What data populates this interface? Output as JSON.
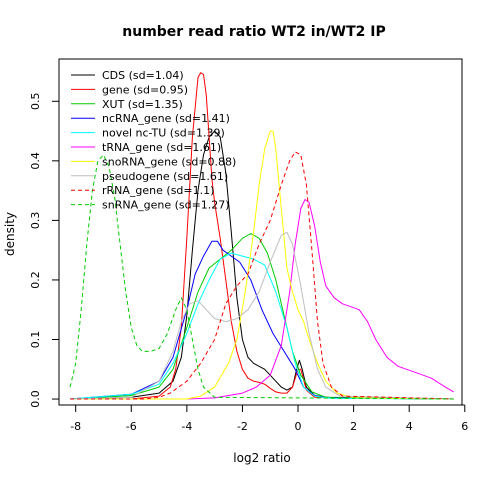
{
  "chart_data": {
    "type": "line",
    "title": "number read ratio WT2 in/WT2 IP",
    "xlabel": "log2 ratio",
    "ylabel": "density",
    "xlim": [
      -8.6,
      5.9
    ],
    "ylim": [
      -0.01,
      0.571
    ],
    "xticks": [
      -8,
      -6,
      -4,
      -2,
      0,
      2,
      4,
      6
    ],
    "yticks": [
      0.0,
      0.1,
      0.2,
      0.3,
      0.4,
      0.5
    ],
    "legend_position": "top-left",
    "grid": false,
    "series": [
      {
        "name": "CDS (sd=1.04)",
        "color": "#000000",
        "dash": false,
        "points": [
          [
            -8.2,
            0.0
          ],
          [
            -6.0,
            0.003
          ],
          [
            -5.0,
            0.01
          ],
          [
            -4.5,
            0.03
          ],
          [
            -4.2,
            0.07
          ],
          [
            -4.0,
            0.14
          ],
          [
            -3.8,
            0.25
          ],
          [
            -3.6,
            0.35
          ],
          [
            -3.4,
            0.41
          ],
          [
            -3.2,
            0.44
          ],
          [
            -3.0,
            0.45
          ],
          [
            -2.8,
            0.44
          ],
          [
            -2.6,
            0.38
          ],
          [
            -2.4,
            0.28
          ],
          [
            -2.2,
            0.17
          ],
          [
            -2.0,
            0.1
          ],
          [
            -1.8,
            0.07
          ],
          [
            -1.6,
            0.06
          ],
          [
            -1.4,
            0.055
          ],
          [
            -1.2,
            0.05
          ],
          [
            -1.0,
            0.04
          ],
          [
            -0.8,
            0.03
          ],
          [
            -0.6,
            0.02
          ],
          [
            -0.4,
            0.015
          ],
          [
            -0.2,
            0.02
          ],
          [
            -0.05,
            0.05
          ],
          [
            0.05,
            0.065
          ],
          [
            0.15,
            0.05
          ],
          [
            0.3,
            0.02
          ],
          [
            0.6,
            0.006
          ],
          [
            1.2,
            0.002
          ],
          [
            5.6,
            0.0
          ]
        ]
      },
      {
        "name": "gene (sd=0.95)",
        "color": "#ff0000",
        "dash": false,
        "points": [
          [
            -8.2,
            0.0
          ],
          [
            -6.0,
            0.0
          ],
          [
            -5.0,
            0.005
          ],
          [
            -4.6,
            0.02
          ],
          [
            -4.4,
            0.05
          ],
          [
            -4.2,
            0.12
          ],
          [
            -4.0,
            0.27
          ],
          [
            -3.8,
            0.44
          ],
          [
            -3.6,
            0.54
          ],
          [
            -3.5,
            0.548
          ],
          [
            -3.4,
            0.545
          ],
          [
            -3.3,
            0.51
          ],
          [
            -3.2,
            0.44
          ],
          [
            -3.1,
            0.37
          ],
          [
            -3.0,
            0.33
          ],
          [
            -2.9,
            0.3
          ],
          [
            -2.8,
            0.27
          ],
          [
            -2.6,
            0.2
          ],
          [
            -2.4,
            0.13
          ],
          [
            -2.2,
            0.08
          ],
          [
            -2.0,
            0.05
          ],
          [
            -1.8,
            0.035
          ],
          [
            -1.6,
            0.03
          ],
          [
            -1.4,
            0.028
          ],
          [
            -1.2,
            0.025
          ],
          [
            -1.0,
            0.018
          ],
          [
            -0.8,
            0.012
          ],
          [
            -0.6,
            0.01
          ],
          [
            -0.4,
            0.01
          ],
          [
            -0.2,
            0.02
          ],
          [
            0.0,
            0.05
          ],
          [
            0.1,
            0.05
          ],
          [
            0.3,
            0.015
          ],
          [
            0.6,
            0.003
          ],
          [
            5.6,
            0.0
          ]
        ]
      },
      {
        "name": "XUT (sd=1.35)",
        "color": "#00cc00",
        "dash": false,
        "points": [
          [
            -8.2,
            0.0
          ],
          [
            -6.0,
            0.006
          ],
          [
            -5.0,
            0.02
          ],
          [
            -4.5,
            0.05
          ],
          [
            -4.0,
            0.12
          ],
          [
            -3.6,
            0.18
          ],
          [
            -3.2,
            0.22
          ],
          [
            -2.8,
            0.235
          ],
          [
            -2.4,
            0.25
          ],
          [
            -2.0,
            0.27
          ],
          [
            -1.7,
            0.278
          ],
          [
            -1.4,
            0.27
          ],
          [
            -1.1,
            0.245
          ],
          [
            -0.8,
            0.2
          ],
          [
            -0.5,
            0.14
          ],
          [
            -0.2,
            0.08
          ],
          [
            0.1,
            0.04
          ],
          [
            0.5,
            0.012
          ],
          [
            1.0,
            0.003
          ],
          [
            5.6,
            0.0
          ]
        ]
      },
      {
        "name": "ncRNA_gene (sd=1.41)",
        "color": "#0000ff",
        "dash": false,
        "points": [
          [
            -8.2,
            0.0
          ],
          [
            -6.0,
            0.008
          ],
          [
            -5.0,
            0.03
          ],
          [
            -4.5,
            0.07
          ],
          [
            -4.0,
            0.15
          ],
          [
            -3.7,
            0.21
          ],
          [
            -3.4,
            0.24
          ],
          [
            -3.1,
            0.265
          ],
          [
            -2.9,
            0.265
          ],
          [
            -2.7,
            0.25
          ],
          [
            -2.4,
            0.24
          ],
          [
            -2.1,
            0.23
          ],
          [
            -1.7,
            0.2
          ],
          [
            -1.3,
            0.15
          ],
          [
            -0.9,
            0.11
          ],
          [
            -0.5,
            0.08
          ],
          [
            -0.1,
            0.05
          ],
          [
            0.2,
            0.02
          ],
          [
            0.6,
            0.006
          ],
          [
            1.0,
            0.002
          ],
          [
            5.6,
            0.0
          ]
        ]
      },
      {
        "name": "novel nc-TU (sd=1.39)",
        "color": "#00ffff",
        "dash": false,
        "points": [
          [
            -8.2,
            0.0
          ],
          [
            -6.0,
            0.008
          ],
          [
            -5.0,
            0.025
          ],
          [
            -4.5,
            0.06
          ],
          [
            -4.0,
            0.11
          ],
          [
            -3.6,
            0.16
          ],
          [
            -3.2,
            0.2
          ],
          [
            -2.8,
            0.235
          ],
          [
            -2.4,
            0.245
          ],
          [
            -2.0,
            0.24
          ],
          [
            -1.6,
            0.235
          ],
          [
            -1.2,
            0.225
          ],
          [
            -0.8,
            0.18
          ],
          [
            -0.4,
            0.12
          ],
          [
            -0.1,
            0.06
          ],
          [
            0.2,
            0.02
          ],
          [
            0.6,
            0.005
          ],
          [
            1.2,
            0.001
          ],
          [
            5.6,
            0.0
          ]
        ]
      },
      {
        "name": "tRNA_gene (sd=1.61)",
        "color": "#ff00ff",
        "dash": false,
        "points": [
          [
            -8.2,
            0.0
          ],
          [
            -4.0,
            0.0
          ],
          [
            -3.0,
            0.002
          ],
          [
            -2.0,
            0.01
          ],
          [
            -1.5,
            0.02
          ],
          [
            -1.0,
            0.04
          ],
          [
            -0.6,
            0.09
          ],
          [
            -0.3,
            0.18
          ],
          [
            -0.1,
            0.26
          ],
          [
            0.1,
            0.32
          ],
          [
            0.25,
            0.335
          ],
          [
            0.4,
            0.33
          ],
          [
            0.6,
            0.29
          ],
          [
            0.8,
            0.23
          ],
          [
            1.0,
            0.19
          ],
          [
            1.3,
            0.17
          ],
          [
            1.6,
            0.16
          ],
          [
            1.9,
            0.155
          ],
          [
            2.2,
            0.15
          ],
          [
            2.5,
            0.13
          ],
          [
            2.8,
            0.1
          ],
          [
            3.2,
            0.07
          ],
          [
            3.6,
            0.055
          ],
          [
            4.2,
            0.045
          ],
          [
            4.8,
            0.035
          ],
          [
            5.3,
            0.02
          ],
          [
            5.6,
            0.012
          ]
        ]
      },
      {
        "name": "snoRNA_gene (sd=0.88)",
        "color": "#ffff00",
        "dash": false,
        "points": [
          [
            -8.2,
            0.0
          ],
          [
            -4.0,
            0.0
          ],
          [
            -3.5,
            0.005
          ],
          [
            -3.0,
            0.02
          ],
          [
            -2.5,
            0.06
          ],
          [
            -2.2,
            0.1
          ],
          [
            -1.9,
            0.18
          ],
          [
            -1.6,
            0.28
          ],
          [
            -1.4,
            0.36
          ],
          [
            -1.2,
            0.42
          ],
          [
            -1.0,
            0.45
          ],
          [
            -0.9,
            0.45
          ],
          [
            -0.8,
            0.42
          ],
          [
            -0.6,
            0.32
          ],
          [
            -0.4,
            0.22
          ],
          [
            -0.2,
            0.18
          ],
          [
            0.0,
            0.15
          ],
          [
            0.2,
            0.13
          ],
          [
            0.4,
            0.1
          ],
          [
            0.7,
            0.06
          ],
          [
            1.0,
            0.03
          ],
          [
            1.4,
            0.01
          ],
          [
            2.0,
            0.002
          ],
          [
            5.6,
            0.0
          ]
        ]
      },
      {
        "name": "pseudogene (sd=1.61)",
        "color": "#bebebe",
        "dash": false,
        "points": [
          [
            -8.2,
            0.0
          ],
          [
            -6.0,
            0.003
          ],
          [
            -5.0,
            0.03
          ],
          [
            -4.5,
            0.08
          ],
          [
            -4.2,
            0.13
          ],
          [
            -3.9,
            0.16
          ],
          [
            -3.6,
            0.165
          ],
          [
            -3.3,
            0.15
          ],
          [
            -3.0,
            0.135
          ],
          [
            -2.6,
            0.13
          ],
          [
            -2.2,
            0.135
          ],
          [
            -1.8,
            0.15
          ],
          [
            -1.4,
            0.18
          ],
          [
            -1.0,
            0.23
          ],
          [
            -0.6,
            0.275
          ],
          [
            -0.4,
            0.28
          ],
          [
            -0.2,
            0.26
          ],
          [
            0.1,
            0.19
          ],
          [
            0.4,
            0.11
          ],
          [
            0.7,
            0.05
          ],
          [
            1.0,
            0.02
          ],
          [
            1.5,
            0.005
          ],
          [
            5.6,
            0.0
          ]
        ]
      },
      {
        "name": "rRNA_gene (sd=1.1)",
        "color": "#ff0000",
        "dash": true,
        "points": [
          [
            -8.2,
            0.0
          ],
          [
            -5.5,
            0.0
          ],
          [
            -5.0,
            0.003
          ],
          [
            -4.6,
            0.01
          ],
          [
            -4.0,
            0.03
          ],
          [
            -3.5,
            0.06
          ],
          [
            -3.0,
            0.1
          ],
          [
            -2.6,
            0.16
          ],
          [
            -2.2,
            0.19
          ],
          [
            -1.8,
            0.21
          ],
          [
            -1.4,
            0.26
          ],
          [
            -1.0,
            0.3
          ],
          [
            -0.6,
            0.36
          ],
          [
            -0.3,
            0.4
          ],
          [
            -0.1,
            0.415
          ],
          [
            0.1,
            0.41
          ],
          [
            0.3,
            0.36
          ],
          [
            0.5,
            0.25
          ],
          [
            0.7,
            0.13
          ],
          [
            0.9,
            0.06
          ],
          [
            1.2,
            0.02
          ],
          [
            1.6,
            0.005
          ],
          [
            5.6,
            0.0
          ]
        ]
      },
      {
        "name": "snRNA_gene (sd=1.27)",
        "color": "#00cc00",
        "dash": true,
        "points": [
          [
            -8.2,
            0.02
          ],
          [
            -8.0,
            0.06
          ],
          [
            -7.8,
            0.15
          ],
          [
            -7.6,
            0.26
          ],
          [
            -7.4,
            0.35
          ],
          [
            -7.2,
            0.4
          ],
          [
            -7.0,
            0.41
          ],
          [
            -6.8,
            0.39
          ],
          [
            -6.6,
            0.34
          ],
          [
            -6.4,
            0.26
          ],
          [
            -6.2,
            0.18
          ],
          [
            -6.0,
            0.12
          ],
          [
            -5.8,
            0.09
          ],
          [
            -5.6,
            0.08
          ],
          [
            -5.3,
            0.08
          ],
          [
            -5.0,
            0.085
          ],
          [
            -4.7,
            0.11
          ],
          [
            -4.4,
            0.15
          ],
          [
            -4.2,
            0.17
          ],
          [
            -4.0,
            0.15
          ],
          [
            -3.8,
            0.1
          ],
          [
            -3.6,
            0.05
          ],
          [
            -3.4,
            0.02
          ],
          [
            -3.0,
            0.003
          ],
          [
            5.6,
            0.0
          ]
        ]
      }
    ]
  }
}
